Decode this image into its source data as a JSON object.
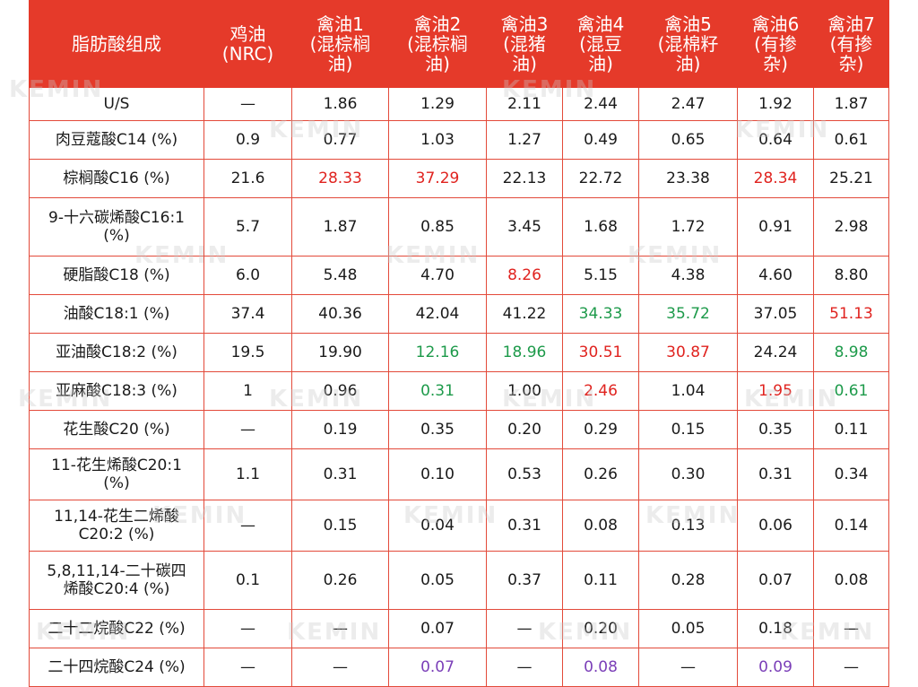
{
  "header": {
    "col0": "脂肪酸组成",
    "col1": "鸡油\n(NRC)",
    "col2": "禽油1\n(混棕榈\n油)",
    "col3": "禽油2\n(混棕榈\n油)",
    "col4": "禽油3\n(混猪\n油)",
    "col5": "禽油4\n(混豆\n油)",
    "col6": "禽油5\n(混棉籽\n油)",
    "col7": "禽油6\n(有掺\n杂)",
    "col8": "禽油7\n(有掺\n杂)"
  },
  "watermark_text": "KEMIN",
  "colors": {
    "header_bg": "#e53a2a",
    "red": "#e0231f",
    "green": "#1d9a4a",
    "purple": "#7b3fb8"
  },
  "rows": [
    {
      "label": "U/S",
      "cells": [
        {
          "v": "—",
          "c": "black"
        },
        {
          "v": "1.86",
          "c": "black"
        },
        {
          "v": "1.29",
          "c": "black"
        },
        {
          "v": "2.11",
          "c": "black"
        },
        {
          "v": "2.44",
          "c": "black"
        },
        {
          "v": "2.47",
          "c": "black"
        },
        {
          "v": "1.92",
          "c": "black"
        },
        {
          "v": "1.87",
          "c": "black"
        }
      ]
    },
    {
      "label": "肉豆蔻酸C14 (%)",
      "cells": [
        {
          "v": "0.9",
          "c": "black"
        },
        {
          "v": "0.77",
          "c": "black"
        },
        {
          "v": "1.03",
          "c": "black"
        },
        {
          "v": "1.27",
          "c": "black"
        },
        {
          "v": "0.49",
          "c": "black"
        },
        {
          "v": "0.65",
          "c": "black"
        },
        {
          "v": "0.64",
          "c": "black"
        },
        {
          "v": "0.61",
          "c": "black"
        }
      ]
    },
    {
      "label": "棕榈酸C16 (%)",
      "cells": [
        {
          "v": "21.6",
          "c": "black"
        },
        {
          "v": "28.33",
          "c": "red"
        },
        {
          "v": "37.29",
          "c": "red"
        },
        {
          "v": "22.13",
          "c": "black"
        },
        {
          "v": "22.72",
          "c": "black"
        },
        {
          "v": "23.38",
          "c": "black"
        },
        {
          "v": "28.34",
          "c": "red"
        },
        {
          "v": "25.21",
          "c": "black"
        }
      ]
    },
    {
      "label": "9-十六碳烯酸C16:1\n(%)",
      "cells": [
        {
          "v": "5.7",
          "c": "black"
        },
        {
          "v": "1.87",
          "c": "black"
        },
        {
          "v": "0.85",
          "c": "black"
        },
        {
          "v": "3.45",
          "c": "black"
        },
        {
          "v": "1.68",
          "c": "black"
        },
        {
          "v": "1.72",
          "c": "black"
        },
        {
          "v": "0.91",
          "c": "black"
        },
        {
          "v": "2.98",
          "c": "black"
        }
      ]
    },
    {
      "label": "硬脂酸C18 (%)",
      "cells": [
        {
          "v": "6.0",
          "c": "black"
        },
        {
          "v": "5.48",
          "c": "black"
        },
        {
          "v": "4.70",
          "c": "black"
        },
        {
          "v": "8.26",
          "c": "red"
        },
        {
          "v": "5.15",
          "c": "black"
        },
        {
          "v": "4.38",
          "c": "black"
        },
        {
          "v": "4.60",
          "c": "black"
        },
        {
          "v": "8.80",
          "c": "black"
        }
      ]
    },
    {
      "label": "油酸C18:1 (%)",
      "cells": [
        {
          "v": "37.4",
          "c": "black"
        },
        {
          "v": "40.36",
          "c": "black"
        },
        {
          "v": "42.04",
          "c": "black"
        },
        {
          "v": "41.22",
          "c": "black"
        },
        {
          "v": "34.33",
          "c": "green"
        },
        {
          "v": "35.72",
          "c": "green"
        },
        {
          "v": "37.05",
          "c": "black"
        },
        {
          "v": "51.13",
          "c": "red"
        }
      ]
    },
    {
      "label": "亚油酸C18:2 (%)",
      "cells": [
        {
          "v": "19.5",
          "c": "black"
        },
        {
          "v": "19.90",
          "c": "black"
        },
        {
          "v": "12.16",
          "c": "green"
        },
        {
          "v": "18.96",
          "c": "green"
        },
        {
          "v": "30.51",
          "c": "red"
        },
        {
          "v": "30.87",
          "c": "red"
        },
        {
          "v": "24.24",
          "c": "black"
        },
        {
          "v": "8.98",
          "c": "green"
        }
      ]
    },
    {
      "label": "亚麻酸C18:3 (%)",
      "cells": [
        {
          "v": "1",
          "c": "black"
        },
        {
          "v": "0.96",
          "c": "black"
        },
        {
          "v": "0.31",
          "c": "green"
        },
        {
          "v": "1.00",
          "c": "black"
        },
        {
          "v": "2.46",
          "c": "red"
        },
        {
          "v": "1.04",
          "c": "black"
        },
        {
          "v": "1.95",
          "c": "red"
        },
        {
          "v": "0.61",
          "c": "green"
        }
      ]
    },
    {
      "label": "花生酸C20 (%)",
      "cells": [
        {
          "v": "—",
          "c": "black"
        },
        {
          "v": "0.19",
          "c": "black"
        },
        {
          "v": "0.35",
          "c": "black"
        },
        {
          "v": "0.20",
          "c": "black"
        },
        {
          "v": "0.29",
          "c": "black"
        },
        {
          "v": "0.15",
          "c": "black"
        },
        {
          "v": "0.35",
          "c": "black"
        },
        {
          "v": "0.11",
          "c": "black"
        }
      ]
    },
    {
      "label": "11-花生烯酸C20:1\n(%)",
      "cells": [
        {
          "v": "1.1",
          "c": "black"
        },
        {
          "v": "0.31",
          "c": "black"
        },
        {
          "v": "0.10",
          "c": "black"
        },
        {
          "v": "0.53",
          "c": "black"
        },
        {
          "v": "0.26",
          "c": "black"
        },
        {
          "v": "0.30",
          "c": "black"
        },
        {
          "v": "0.31",
          "c": "black"
        },
        {
          "v": "0.34",
          "c": "black"
        }
      ]
    },
    {
      "label": "11,14-花生二烯酸\nC20:2 (%)",
      "cells": [
        {
          "v": "—",
          "c": "black"
        },
        {
          "v": "0.15",
          "c": "black"
        },
        {
          "v": "0.04",
          "c": "black"
        },
        {
          "v": "0.31",
          "c": "black"
        },
        {
          "v": "0.08",
          "c": "black"
        },
        {
          "v": "0.13",
          "c": "black"
        },
        {
          "v": "0.06",
          "c": "black"
        },
        {
          "v": "0.14",
          "c": "black"
        }
      ]
    },
    {
      "label": "5,8,11,14-二十碳四\n烯酸C20:4 (%)",
      "cells": [
        {
          "v": "0.1",
          "c": "black"
        },
        {
          "v": "0.26",
          "c": "black"
        },
        {
          "v": "0.05",
          "c": "black"
        },
        {
          "v": "0.37",
          "c": "black"
        },
        {
          "v": "0.11",
          "c": "black"
        },
        {
          "v": "0.28",
          "c": "black"
        },
        {
          "v": "0.07",
          "c": "black"
        },
        {
          "v": "0.08",
          "c": "black"
        }
      ]
    },
    {
      "label": "二十二烷酸C22 (%)",
      "cells": [
        {
          "v": "—",
          "c": "black"
        },
        {
          "v": "—",
          "c": "black"
        },
        {
          "v": "0.07",
          "c": "black"
        },
        {
          "v": "—",
          "c": "black"
        },
        {
          "v": "0.20",
          "c": "black"
        },
        {
          "v": "0.05",
          "c": "black"
        },
        {
          "v": "0.18",
          "c": "black"
        },
        {
          "v": "—",
          "c": "black"
        }
      ]
    },
    {
      "label": "二十四烷酸C24 (%)",
      "cells": [
        {
          "v": "—",
          "c": "black"
        },
        {
          "v": "—",
          "c": "black"
        },
        {
          "v": "0.07",
          "c": "purple"
        },
        {
          "v": "—",
          "c": "black"
        },
        {
          "v": "0.08",
          "c": "purple"
        },
        {
          "v": "—",
          "c": "black"
        },
        {
          "v": "0.09",
          "c": "purple"
        },
        {
          "v": "—",
          "c": "black"
        }
      ]
    }
  ]
}
